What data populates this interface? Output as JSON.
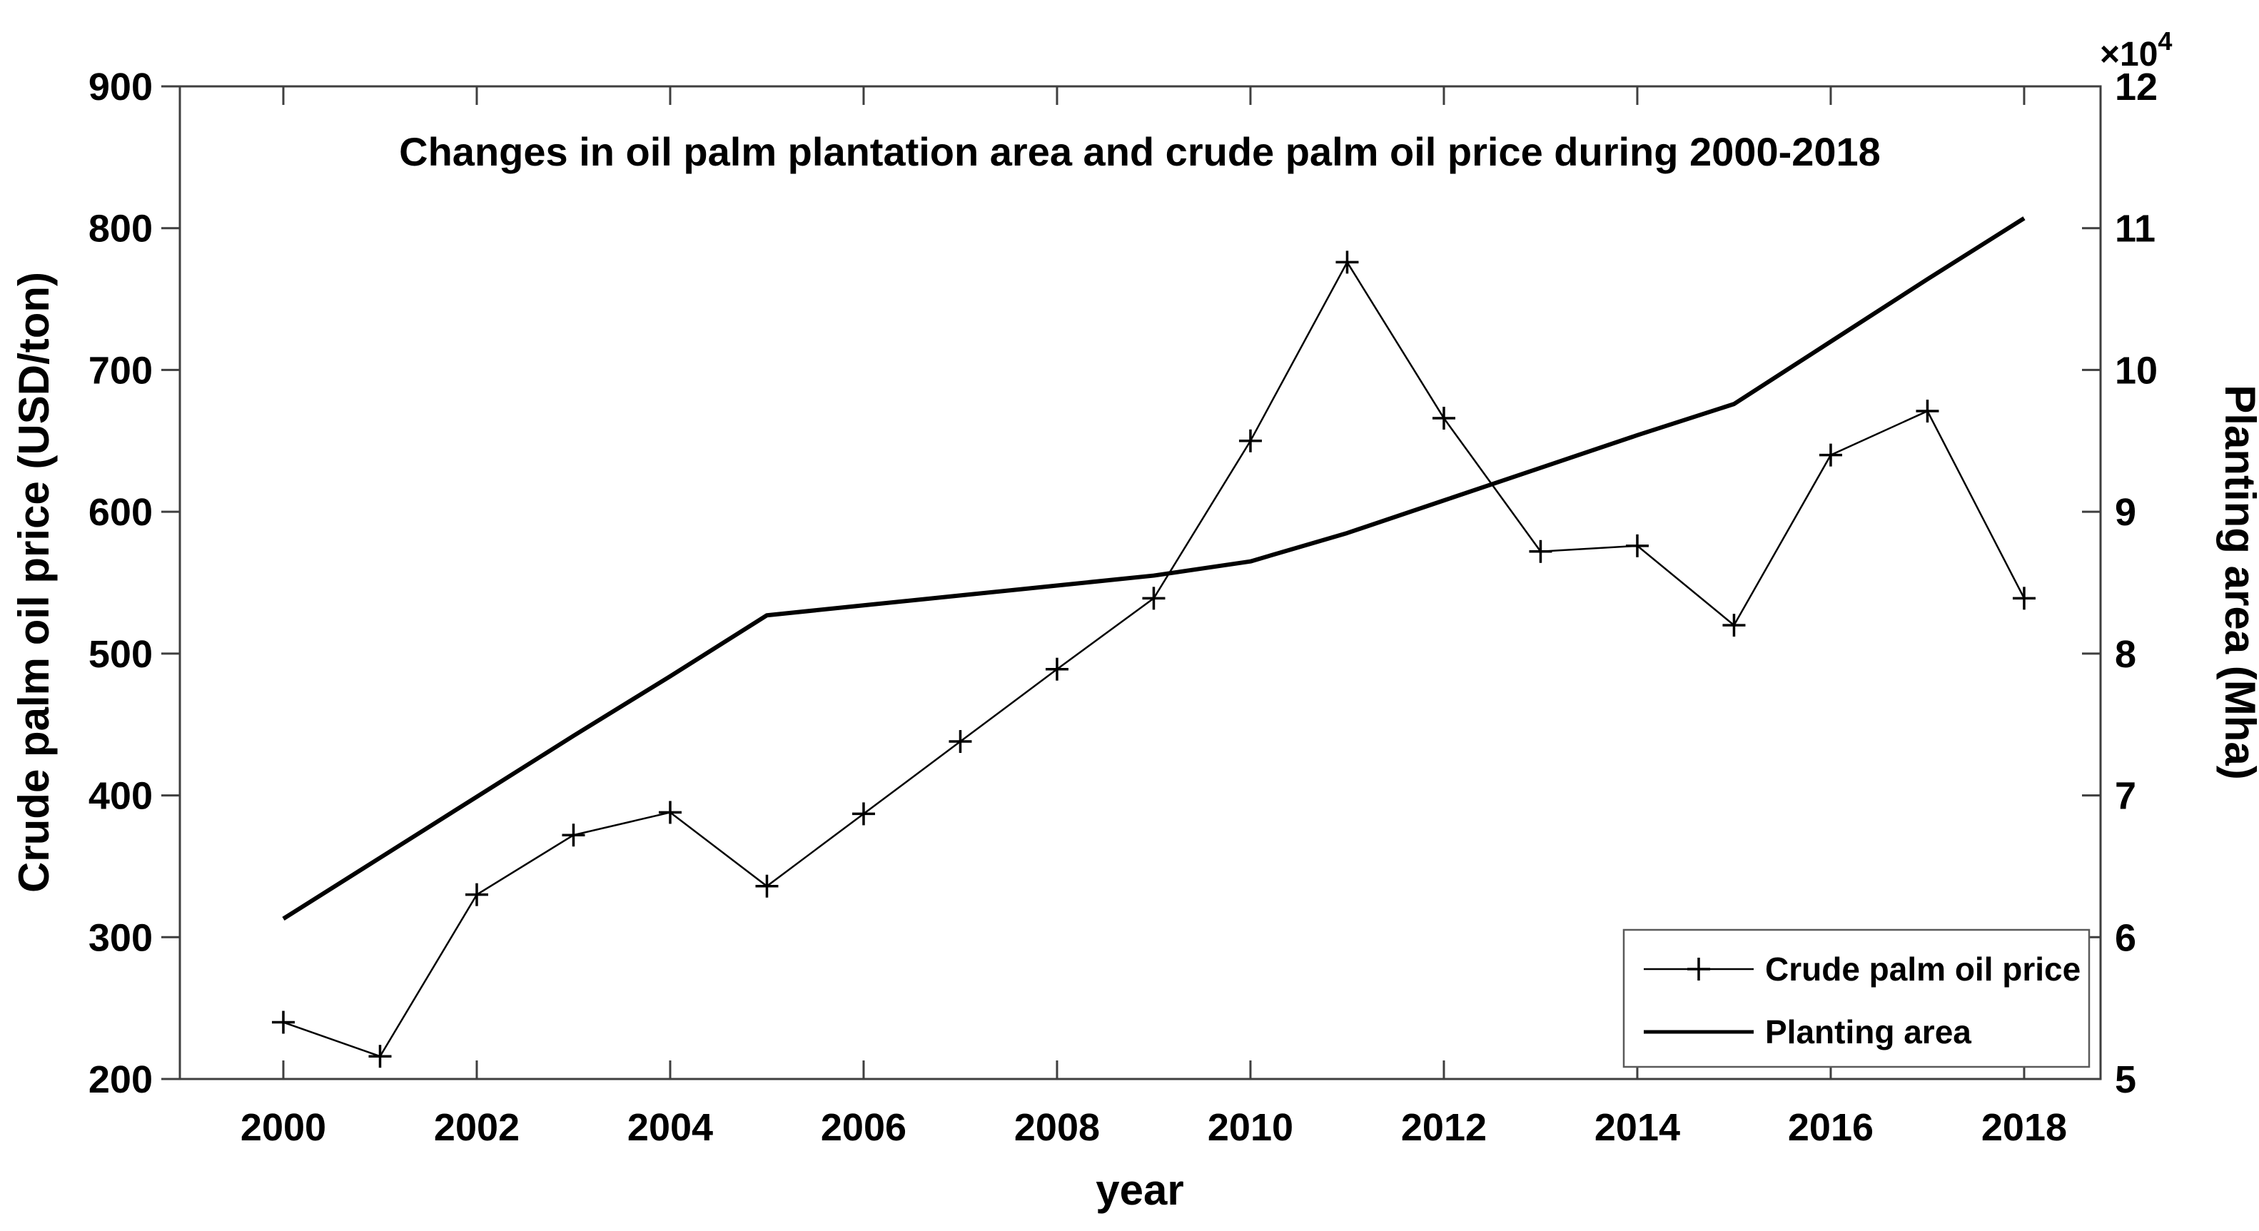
{
  "title": "Changes in oil palm plantation area and crude palm oil price during 2000-2018",
  "axes": {
    "x": {
      "label": "year",
      "tick_labels": [
        2000,
        2002,
        2004,
        2006,
        2008,
        2010,
        2012,
        2014,
        2016,
        2018
      ],
      "lim": [
        1998.93,
        2018.79
      ]
    },
    "y_left": {
      "label": "Crude palm oil price (USD/ton)",
      "tick_labels": [
        200,
        300,
        400,
        500,
        600,
        700,
        800,
        900
      ],
      "lim": [
        200,
        900
      ]
    },
    "y_right": {
      "label": "Planting area (Mha)",
      "tick_labels": [
        5,
        6,
        7,
        8,
        9,
        10,
        11,
        12
      ],
      "lim": [
        5,
        12
      ],
      "multiplier_base": "×10",
      "multiplier_exp": "4"
    }
  },
  "legend": {
    "entries": [
      {
        "label": "Crude palm oil price",
        "marker": "plus-line"
      },
      {
        "label": "Planting area",
        "marker": "line"
      }
    ]
  },
  "colors": {
    "series": "#000000",
    "axis": "#3f3f3f",
    "legend_border": "#5a5a5a",
    "background": "#ffffff"
  },
  "chart_data": {
    "type": "line",
    "title": "Changes in oil palm plantation area and crude palm oil price during 2000-2018",
    "xlabel": "year",
    "ylabel_left": "Crude palm oil price (USD/ton)",
    "ylabel_right": "Planting area (Mha)",
    "ylim_left": [
      200,
      900
    ],
    "ylim_right": [
      5,
      12
    ],
    "right_axis_multiplier": "×10⁴",
    "grid": false,
    "legend_position": "bottom-right",
    "x": [
      2000,
      2001,
      2002,
      2003,
      2004,
      2005,
      2006,
      2007,
      2008,
      2009,
      2010,
      2011,
      2012,
      2013,
      2014,
      2015,
      2016,
      2017,
      2018
    ],
    "series": [
      {
        "name": "Crude palm oil price",
        "axis": "left",
        "marker": "plus",
        "line_style": "thin",
        "values": [
          240,
          216,
          330,
          372,
          388,
          336,
          387,
          438,
          489,
          539,
          650,
          776,
          666,
          572,
          576,
          520,
          640,
          671,
          539
        ]
      },
      {
        "name": "Planting area",
        "axis": "right",
        "marker": "none",
        "line_style": "thick",
        "values": [
          6.13,
          6.56,
          6.99,
          7.42,
          7.84,
          8.27,
          8.34,
          8.41,
          8.48,
          8.55,
          8.65,
          8.85,
          9.08,
          9.31,
          9.54,
          9.76,
          10.2,
          10.64,
          11.07
        ]
      }
    ]
  }
}
